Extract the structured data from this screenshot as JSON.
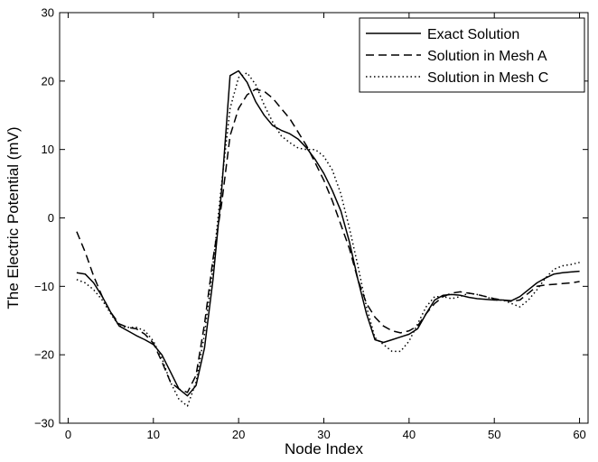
{
  "chart_data": {
    "type": "line",
    "title": "",
    "xlabel": "Node Index",
    "ylabel": "The Electric Potential (mV)",
    "xlim": [
      -1,
      61
    ],
    "ylim": [
      -30,
      30
    ],
    "xticks": [
      0,
      10,
      20,
      30,
      40,
      50,
      60
    ],
    "yticks": [
      -30,
      -20,
      -10,
      0,
      10,
      20,
      30
    ],
    "xtick_labels": [
      "0",
      "10",
      "20",
      "30",
      "40",
      "50",
      "60"
    ],
    "ytick_labels": [
      "−30",
      "−20",
      "−10",
      "0",
      "10",
      "20",
      "30"
    ],
    "grid": false,
    "legend_position": "top-right",
    "series": [
      {
        "name": "Exact Solution",
        "style": "solid",
        "color": "#000000",
        "x": [
          1,
          2,
          3,
          4,
          5,
          6,
          7,
          8,
          9,
          10,
          11,
          12,
          13,
          14,
          15,
          16,
          17,
          18,
          19,
          20,
          21,
          22,
          23,
          24,
          25,
          26,
          27,
          28,
          29,
          30,
          31,
          32,
          33,
          34,
          35,
          36,
          37,
          38,
          39,
          40,
          41,
          42,
          43,
          44,
          45,
          46,
          47,
          48,
          49,
          50,
          51,
          52,
          53,
          54,
          55,
          56,
          57,
          58,
          59,
          60
        ],
        "y": [
          -8,
          -8.2,
          -9.5,
          -11.5,
          -13.8,
          -15.8,
          -16.5,
          -17.2,
          -17.8,
          -18.5,
          -20,
          -22.5,
          -25,
          -26,
          -24.5,
          -19,
          -9,
          4,
          20.8,
          21.5,
          19.8,
          17,
          15,
          13.5,
          12.8,
          12.3,
          11.5,
          10.2,
          8.5,
          6.5,
          4,
          1,
          -3.5,
          -9,
          -14,
          -17.8,
          -18.2,
          -17.8,
          -17.4,
          -17,
          -16.2,
          -14,
          -12,
          -11.3,
          -11.2,
          -11.3,
          -11.6,
          -11.8,
          -11.9,
          -12,
          -12,
          -12.1,
          -11.5,
          -10.5,
          -9.5,
          -8.8,
          -8.2,
          -8,
          -7.9,
          -7.8
        ]
      },
      {
        "name": "Solution in Mesh A",
        "style": "dashed",
        "color": "#000000",
        "x": [
          1,
          2,
          3,
          4,
          5,
          6,
          7,
          8,
          9,
          10,
          11,
          12,
          13,
          14,
          15,
          16,
          17,
          18,
          19,
          20,
          21,
          22,
          23,
          24,
          25,
          26,
          27,
          28,
          29,
          30,
          31,
          32,
          33,
          34,
          35,
          36,
          37,
          38,
          39,
          40,
          41,
          42,
          43,
          44,
          45,
          46,
          47,
          48,
          49,
          50,
          51,
          52,
          53,
          54,
          55,
          56,
          57,
          58,
          59,
          60
        ],
        "y": [
          -2,
          -5,
          -8.5,
          -11.5,
          -13.8,
          -15.5,
          -16,
          -16.2,
          -17,
          -18.3,
          -21,
          -24,
          -25,
          -25.5,
          -23,
          -15.5,
          -6,
          2,
          12,
          16,
          18,
          18.8,
          18.5,
          17.5,
          16,
          14.5,
          12.5,
          10.5,
          8,
          5.5,
          2.5,
          -1,
          -4.5,
          -9,
          -12.5,
          -14.5,
          -15.8,
          -16.5,
          -16.8,
          -16.5,
          -15.8,
          -14,
          -12.5,
          -11.5,
          -11,
          -10.8,
          -11,
          -11.2,
          -11.5,
          -11.8,
          -12,
          -12.2,
          -12,
          -11,
          -10,
          -9.8,
          -9.7,
          -9.6,
          -9.5,
          -9.3
        ]
      },
      {
        "name": "Solution in Mesh C",
        "style": "dotted",
        "color": "#000000",
        "x": [
          1,
          2,
          3,
          4,
          5,
          6,
          7,
          8,
          9,
          10,
          11,
          12,
          13,
          14,
          15,
          16,
          17,
          18,
          19,
          20,
          21,
          22,
          23,
          24,
          25,
          26,
          27,
          28,
          29,
          30,
          31,
          32,
          33,
          34,
          35,
          36,
          37,
          38,
          39,
          40,
          41,
          42,
          43,
          44,
          45,
          46,
          47,
          48,
          49,
          50,
          51,
          52,
          53,
          54,
          55,
          56,
          57,
          58,
          59,
          60
        ],
        "y": [
          -9,
          -9.5,
          -10.5,
          -12,
          -14,
          -15.8,
          -16,
          -16,
          -16.5,
          -18,
          -20.5,
          -24,
          -26.5,
          -27.5,
          -24,
          -17,
          -7,
          5,
          16,
          20.5,
          21.2,
          19.5,
          16.5,
          14,
          12,
          11,
          10.2,
          10,
          10,
          9,
          7,
          3.5,
          -1.5,
          -7,
          -13,
          -17.5,
          -18.5,
          -19.5,
          -19.5,
          -18,
          -15.5,
          -13,
          -11.5,
          -11.5,
          -11.8,
          -11.5,
          -11,
          -11.2,
          -11.5,
          -12,
          -12,
          -12.5,
          -13,
          -12,
          -10.5,
          -8.8,
          -7.5,
          -7,
          -6.8,
          -6.5
        ]
      }
    ]
  }
}
